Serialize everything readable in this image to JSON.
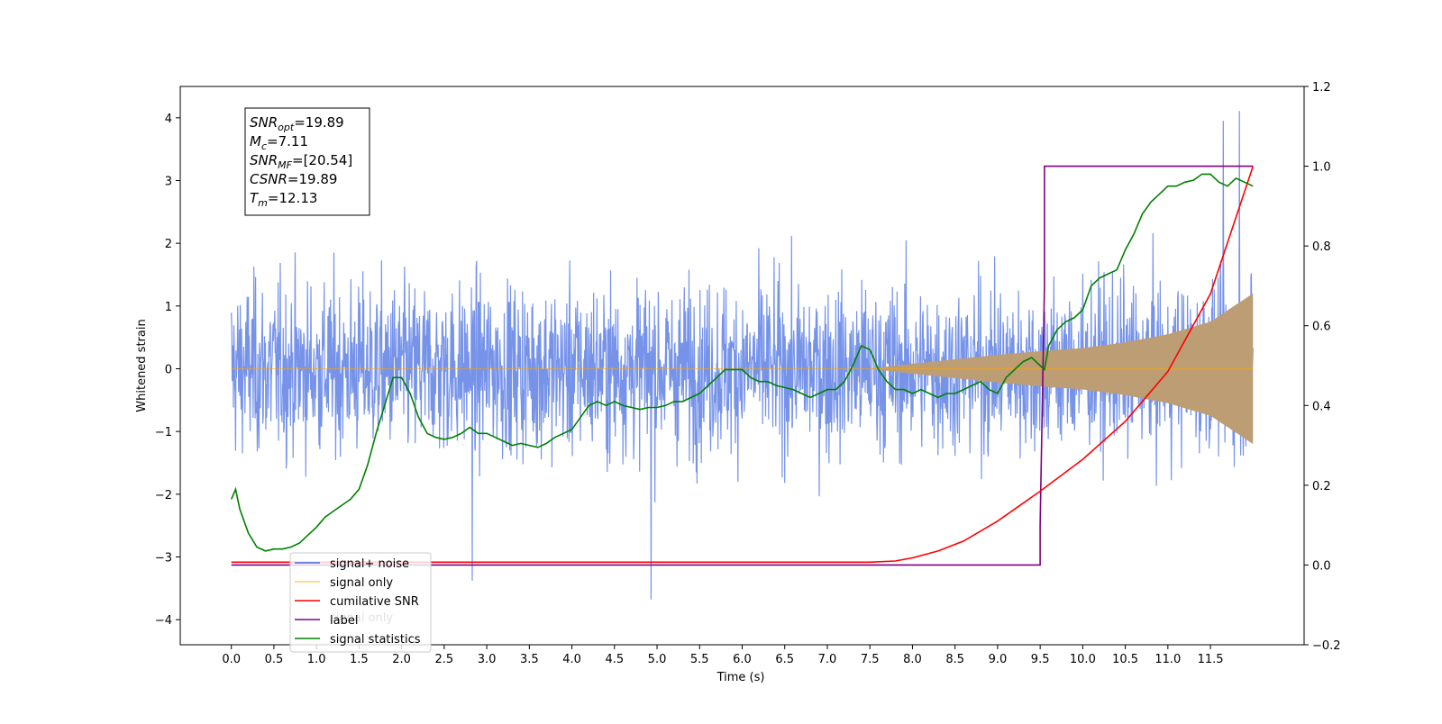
{
  "chart_data": {
    "type": "line",
    "xlabel": "Time (s)",
    "ylabel": "Whitened strain",
    "xlim": [
      -0.6,
      12.6
    ],
    "ylim": [
      -4.4,
      4.5
    ],
    "y2lim": [
      -0.2,
      1.2
    ],
    "x_ticks": [
      "0.0",
      "0.5",
      "1.0",
      "1.5",
      "2.0",
      "2.5",
      "3.0",
      "3.5",
      "4.0",
      "4.5",
      "5.0",
      "5.5",
      "6.0",
      "6.5",
      "7.0",
      "7.5",
      "8.0",
      "8.5",
      "9.0",
      "9.5",
      "10.0",
      "10.5",
      "11.0",
      "11.5"
    ],
    "y_ticks": [
      "4",
      "3",
      "2",
      "1",
      "0",
      "−1",
      "−2",
      "−3",
      "−4"
    ],
    "y2_ticks": [
      "1.2",
      "1.0",
      "0.8",
      "0.6",
      "0.4",
      "0.2",
      "0.0",
      "−0.2"
    ],
    "legend": {
      "placement": "lower-left",
      "entries": [
        {
          "label": "signal+ noise",
          "color": "#4169e1"
        },
        {
          "label": "signal only",
          "color": "#ffa500"
        },
        {
          "label": "cumilative SNR",
          "color": "#ff0000"
        },
        {
          "label": "label",
          "color": "#800080"
        },
        {
          "label": "signal statistics",
          "color": "#008000"
        }
      ],
      "hidden_behind": [
        {
          "label": "signal only"
        }
      ]
    },
    "info_box": [
      {
        "main": "SNR",
        "sub": "opt",
        "rest": "=19.89"
      },
      {
        "main": "M",
        "sub": "c",
        "rest": "=7.11"
      },
      {
        "main": "SNR",
        "sub": "MF",
        "rest": "=[20.54]"
      },
      {
        "main": "CSNR",
        "sub": "",
        "rest": "=19.89"
      },
      {
        "main": "T",
        "sub": "m",
        "rest": "=12.13"
      }
    ],
    "series": [
      {
        "name": "signal+ noise",
        "axis": "left",
        "color": "#4169e1",
        "description": "whitened noise, roughly ±2.5 with spikes up to 4.1 and down to -3.7",
        "x_range": [
          0.0,
          12.0
        ],
        "peaks": [
          [
            4.93,
            -3.68
          ],
          [
            11.84,
            4.11
          ],
          [
            2.83,
            -3.38
          ],
          [
            11.65,
            3.95
          ]
        ]
      },
      {
        "name": "signal only",
        "axis": "left",
        "color": "#ffa500",
        "envelope_x": [
          0.0,
          7.5,
          8.0,
          8.5,
          9.0,
          9.5,
          10.0,
          10.5,
          11.0,
          11.5,
          12.0
        ],
        "envelope_y": [
          0.0,
          0.0,
          0.08,
          0.15,
          0.22,
          0.28,
          0.33,
          0.42,
          0.55,
          0.75,
          1.2
        ]
      },
      {
        "name": "cumilative SNR",
        "axis": "right",
        "color": "#ff0000",
        "x": [
          0.0,
          7.5,
          7.8,
          8.0,
          8.3,
          8.6,
          9.0,
          9.5,
          10.0,
          10.5,
          11.0,
          11.5,
          12.0
        ],
        "y": [
          0.007,
          0.007,
          0.01,
          0.018,
          0.035,
          0.06,
          0.11,
          0.185,
          0.265,
          0.36,
          0.485,
          0.68,
          1.0
        ]
      },
      {
        "name": "label",
        "axis": "right",
        "color": "#800080",
        "x": [
          0.0,
          9.5,
          9.5,
          9.55,
          9.55,
          12.0
        ],
        "y": [
          0.0,
          0.0,
          0.1,
          0.7,
          1.0,
          1.0
        ]
      },
      {
        "name": "signal statistics",
        "axis": "right",
        "color": "#008000",
        "x": [
          0.0,
          0.05,
          0.1,
          0.2,
          0.3,
          0.4,
          0.5,
          0.6,
          0.7,
          0.8,
          0.9,
          1.0,
          1.1,
          1.2,
          1.3,
          1.4,
          1.5,
          1.6,
          1.7,
          1.8,
          1.9,
          2.0,
          2.1,
          2.2,
          2.3,
          2.4,
          2.5,
          2.6,
          2.7,
          2.8,
          2.9,
          3.0,
          3.1,
          3.2,
          3.3,
          3.4,
          3.5,
          3.6,
          3.7,
          3.8,
          3.9,
          4.0,
          4.1,
          4.2,
          4.3,
          4.4,
          4.5,
          4.6,
          4.7,
          4.8,
          4.9,
          5.0,
          5.1,
          5.2,
          5.3,
          5.4,
          5.5,
          5.6,
          5.7,
          5.8,
          5.9,
          6.0,
          6.1,
          6.2,
          6.3,
          6.4,
          6.5,
          6.6,
          6.7,
          6.8,
          6.9,
          7.0,
          7.1,
          7.2,
          7.3,
          7.4,
          7.5,
          7.6,
          7.7,
          7.8,
          7.9,
          8.0,
          8.1,
          8.2,
          8.3,
          8.4,
          8.5,
          8.6,
          8.7,
          8.8,
          8.9,
          9.0,
          9.1,
          9.2,
          9.3,
          9.4,
          9.5,
          9.55,
          9.6,
          9.7,
          9.8,
          9.9,
          10.0,
          10.1,
          10.2,
          10.3,
          10.4,
          10.5,
          10.6,
          10.7,
          10.8,
          10.9,
          11.0,
          11.1,
          11.2,
          11.3,
          11.4,
          11.5,
          11.6,
          11.7,
          11.8,
          11.9,
          12.0
        ],
        "y": [
          0.165,
          0.19,
          0.14,
          0.08,
          0.045,
          0.035,
          0.04,
          0.04,
          0.045,
          0.055,
          0.075,
          0.095,
          0.12,
          0.135,
          0.15,
          0.165,
          0.19,
          0.25,
          0.33,
          0.4,
          0.47,
          0.47,
          0.43,
          0.37,
          0.33,
          0.32,
          0.315,
          0.32,
          0.33,
          0.345,
          0.33,
          0.33,
          0.32,
          0.31,
          0.3,
          0.305,
          0.3,
          0.295,
          0.305,
          0.32,
          0.33,
          0.34,
          0.37,
          0.4,
          0.41,
          0.4,
          0.41,
          0.4,
          0.395,
          0.39,
          0.395,
          0.395,
          0.4,
          0.41,
          0.41,
          0.42,
          0.43,
          0.45,
          0.47,
          0.49,
          0.49,
          0.49,
          0.47,
          0.46,
          0.46,
          0.45,
          0.445,
          0.44,
          0.43,
          0.42,
          0.43,
          0.44,
          0.44,
          0.46,
          0.5,
          0.55,
          0.54,
          0.49,
          0.46,
          0.44,
          0.44,
          0.43,
          0.44,
          0.43,
          0.42,
          0.43,
          0.43,
          0.44,
          0.45,
          0.46,
          0.44,
          0.43,
          0.47,
          0.49,
          0.51,
          0.52,
          0.5,
          0.49,
          0.55,
          0.59,
          0.61,
          0.62,
          0.64,
          0.7,
          0.72,
          0.73,
          0.74,
          0.79,
          0.83,
          0.88,
          0.91,
          0.93,
          0.95,
          0.95,
          0.96,
          0.965,
          0.98,
          0.98,
          0.96,
          0.95,
          0.97,
          0.96,
          0.95
        ]
      }
    ]
  }
}
